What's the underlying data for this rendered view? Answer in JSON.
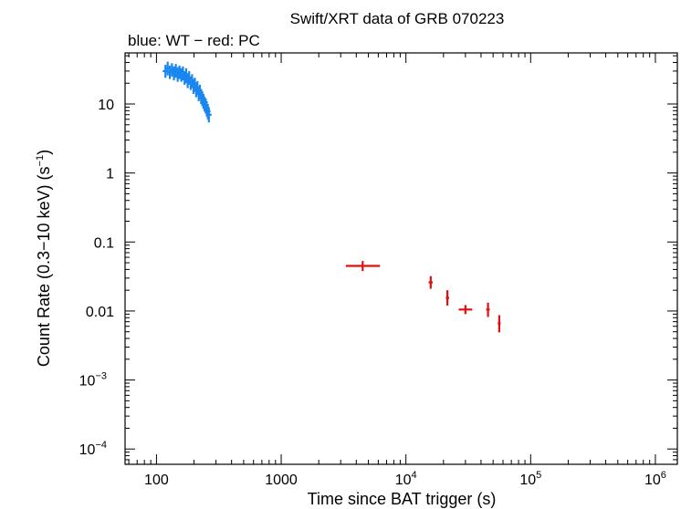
{
  "chart_data": {
    "type": "scatter",
    "title": "Swift/XRT data of GRB 070223",
    "subtitle": "blue: WT − red: PC",
    "xlabel": "Time since BAT trigger (s)",
    "ylabel": "Count Rate (0.3−10 keV) (s−1)",
    "x_scale": "log",
    "y_scale": "log",
    "xlim": [
      56,
      1500000
    ],
    "ylim": [
      6e-05,
      55
    ],
    "x_ticks": [
      {
        "value": 100,
        "base": "100",
        "exp": ""
      },
      {
        "value": 1000,
        "base": "1000",
        "exp": ""
      },
      {
        "value": 10000,
        "base": "10",
        "exp": "4"
      },
      {
        "value": 100000,
        "base": "10",
        "exp": "5"
      },
      {
        "value": 1000000,
        "base": "10",
        "exp": "6"
      }
    ],
    "y_ticks": [
      {
        "value": 0.0001,
        "base": "10",
        "exp": "−4"
      },
      {
        "value": 0.001,
        "base": "10",
        "exp": "−3"
      },
      {
        "value": 0.01,
        "base": "0.01",
        "exp": ""
      },
      {
        "value": 0.1,
        "base": "0.1",
        "exp": ""
      },
      {
        "value": 1,
        "base": "1",
        "exp": ""
      },
      {
        "value": 10,
        "base": "10",
        "exp": ""
      }
    ],
    "series": [
      {
        "name": "WT",
        "color": "#1a86f0",
        "points": [
          {
            "x": 118,
            "y": 30,
            "ylo": 24,
            "yhi": 37
          },
          {
            "x": 123,
            "y": 33,
            "ylo": 26,
            "yhi": 41
          },
          {
            "x": 128,
            "y": 29,
            "ylo": 23,
            "yhi": 36
          },
          {
            "x": 133,
            "y": 31,
            "ylo": 25,
            "yhi": 39
          },
          {
            "x": 138,
            "y": 28,
            "ylo": 22,
            "yhi": 35
          },
          {
            "x": 143,
            "y": 30,
            "ylo": 24,
            "yhi": 38
          },
          {
            "x": 148,
            "y": 27,
            "ylo": 21,
            "yhi": 34
          },
          {
            "x": 153,
            "y": 29,
            "ylo": 23,
            "yhi": 36
          },
          {
            "x": 158,
            "y": 26,
            "ylo": 21,
            "yhi": 33
          },
          {
            "x": 163,
            "y": 28,
            "ylo": 22,
            "yhi": 35
          },
          {
            "x": 168,
            "y": 24,
            "ylo": 19,
            "yhi": 30
          },
          {
            "x": 173,
            "y": 26,
            "ylo": 20,
            "yhi": 33
          },
          {
            "x": 178,
            "y": 22,
            "ylo": 17,
            "yhi": 28
          },
          {
            "x": 183,
            "y": 24,
            "ylo": 19,
            "yhi": 30
          },
          {
            "x": 188,
            "y": 20,
            "ylo": 16,
            "yhi": 25
          },
          {
            "x": 193,
            "y": 21,
            "ylo": 17,
            "yhi": 27
          },
          {
            "x": 198,
            "y": 18,
            "ylo": 14,
            "yhi": 23
          },
          {
            "x": 203,
            "y": 19,
            "ylo": 15,
            "yhi": 24
          },
          {
            "x": 208,
            "y": 16,
            "ylo": 12.5,
            "yhi": 20.5
          },
          {
            "x": 213,
            "y": 17,
            "ylo": 13.5,
            "yhi": 21.5
          },
          {
            "x": 218,
            "y": 14,
            "ylo": 11,
            "yhi": 18
          },
          {
            "x": 223,
            "y": 15,
            "ylo": 11.8,
            "yhi": 19
          },
          {
            "x": 228,
            "y": 13,
            "ylo": 10,
            "yhi": 16.5
          },
          {
            "x": 233,
            "y": 12,
            "ylo": 9.3,
            "yhi": 15.2
          },
          {
            "x": 238,
            "y": 11,
            "ylo": 8.5,
            "yhi": 14
          },
          {
            "x": 243,
            "y": 10,
            "ylo": 7.8,
            "yhi": 12.8
          },
          {
            "x": 248,
            "y": 9.5,
            "ylo": 7.3,
            "yhi": 12
          },
          {
            "x": 253,
            "y": 8.6,
            "ylo": 6.6,
            "yhi": 11
          },
          {
            "x": 258,
            "y": 7.8,
            "ylo": 6,
            "yhi": 10
          },
          {
            "x": 263,
            "y": 7,
            "ylo": 5.4,
            "yhi": 9
          }
        ]
      },
      {
        "name": "PC",
        "color": "#e01010",
        "points": [
          {
            "x": 4500,
            "y": 0.045,
            "xlo": 3300,
            "xhi": 6200,
            "ylo": 0.038,
            "yhi": 0.053
          },
          {
            "x": 15800,
            "y": 0.026,
            "xlo": 15200,
            "xhi": 16400,
            "ylo": 0.021,
            "yhi": 0.032
          },
          {
            "x": 21500,
            "y": 0.0155,
            "xlo": 20900,
            "xhi": 22200,
            "ylo": 0.012,
            "yhi": 0.02
          },
          {
            "x": 30000,
            "y": 0.0105,
            "xlo": 26500,
            "xhi": 34000,
            "ylo": 0.009,
            "yhi": 0.0122
          },
          {
            "x": 45500,
            "y": 0.0105,
            "xlo": 44000,
            "xhi": 47000,
            "ylo": 0.0082,
            "yhi": 0.0132
          },
          {
            "x": 56000,
            "y": 0.0066,
            "xlo": 54500,
            "xhi": 57500,
            "ylo": 0.0049,
            "yhi": 0.0087
          }
        ]
      }
    ]
  }
}
